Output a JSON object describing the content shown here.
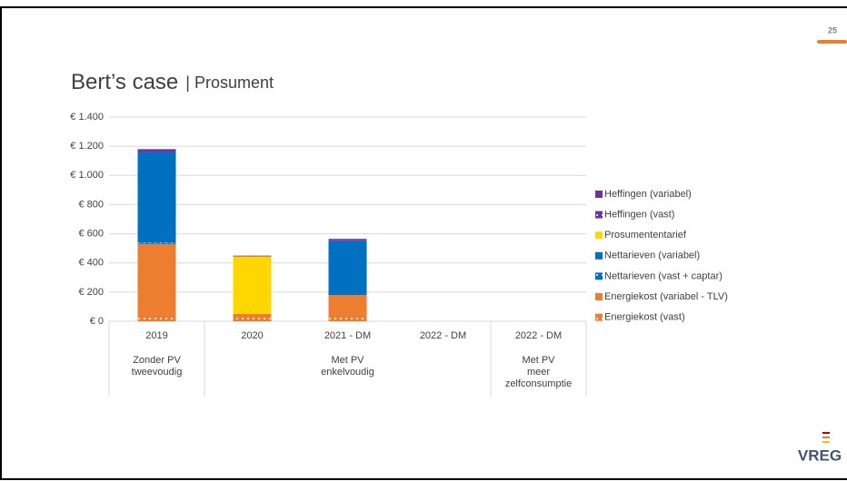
{
  "page": {
    "number": "25",
    "logo": "VREG"
  },
  "chart_data": {
    "type": "bar",
    "stacked": true,
    "title": "Bert’s case",
    "subtitle": "| Prosument",
    "categories": [
      "2019",
      "2020",
      "2021 - DM",
      "2022 - DM",
      "2022 - DM"
    ],
    "group_labels": [
      [
        "Zonder PV",
        "tweevoudig"
      ],
      null,
      [
        "Met PV",
        "enkelvoudig"
      ],
      null,
      [
        "Met PV",
        "meer",
        "zelfconsumptie"
      ]
    ],
    "ylim": [
      0,
      1400
    ],
    "yticks": [
      {
        "value": 0,
        "label": "€ 0"
      },
      {
        "value": 200,
        "label": "€ 200"
      },
      {
        "value": 400,
        "label": "€ 400"
      },
      {
        "value": 600,
        "label": "€ 600"
      },
      {
        "value": 800,
        "label": "€ 800"
      },
      {
        "value": 1000,
        "label": "€ 1.000"
      },
      {
        "value": 1200,
        "label": "€ 1.200"
      },
      {
        "value": 1400,
        "label": "€ 1.400"
      }
    ],
    "grid": true,
    "legend": "right",
    "series": [
      {
        "name": "Energiekost (vast)",
        "color": "#ed7d31",
        "pattern": "dots",
        "values": [
          50,
          50,
          50,
          null,
          null
        ]
      },
      {
        "name": "Energiekost (variabel - TLV)",
        "color": "#ed7d31",
        "values": [
          480,
          0,
          130,
          null,
          null
        ]
      },
      {
        "name": "Nettarieven (vast + captar)",
        "color": "#0070c0",
        "pattern": "dots",
        "values": [
          10,
          0,
          10,
          null,
          null
        ]
      },
      {
        "name": "Nettarieven (variabel)",
        "color": "#0070c0",
        "values": [
          620,
          0,
          360,
          null,
          null
        ]
      },
      {
        "name": "Prosumententarief",
        "color": "#ffd700",
        "values": [
          0,
          395,
          0,
          null,
          null
        ]
      },
      {
        "name": "Heffingen (vast)",
        "color": "#7030a0",
        "pattern": "dots",
        "values": [
          10,
          5,
          5,
          null,
          null
        ]
      },
      {
        "name": "Heffingen (variabel)",
        "color": "#7030a0",
        "values": [
          10,
          0,
          10,
          null,
          null
        ]
      }
    ]
  }
}
